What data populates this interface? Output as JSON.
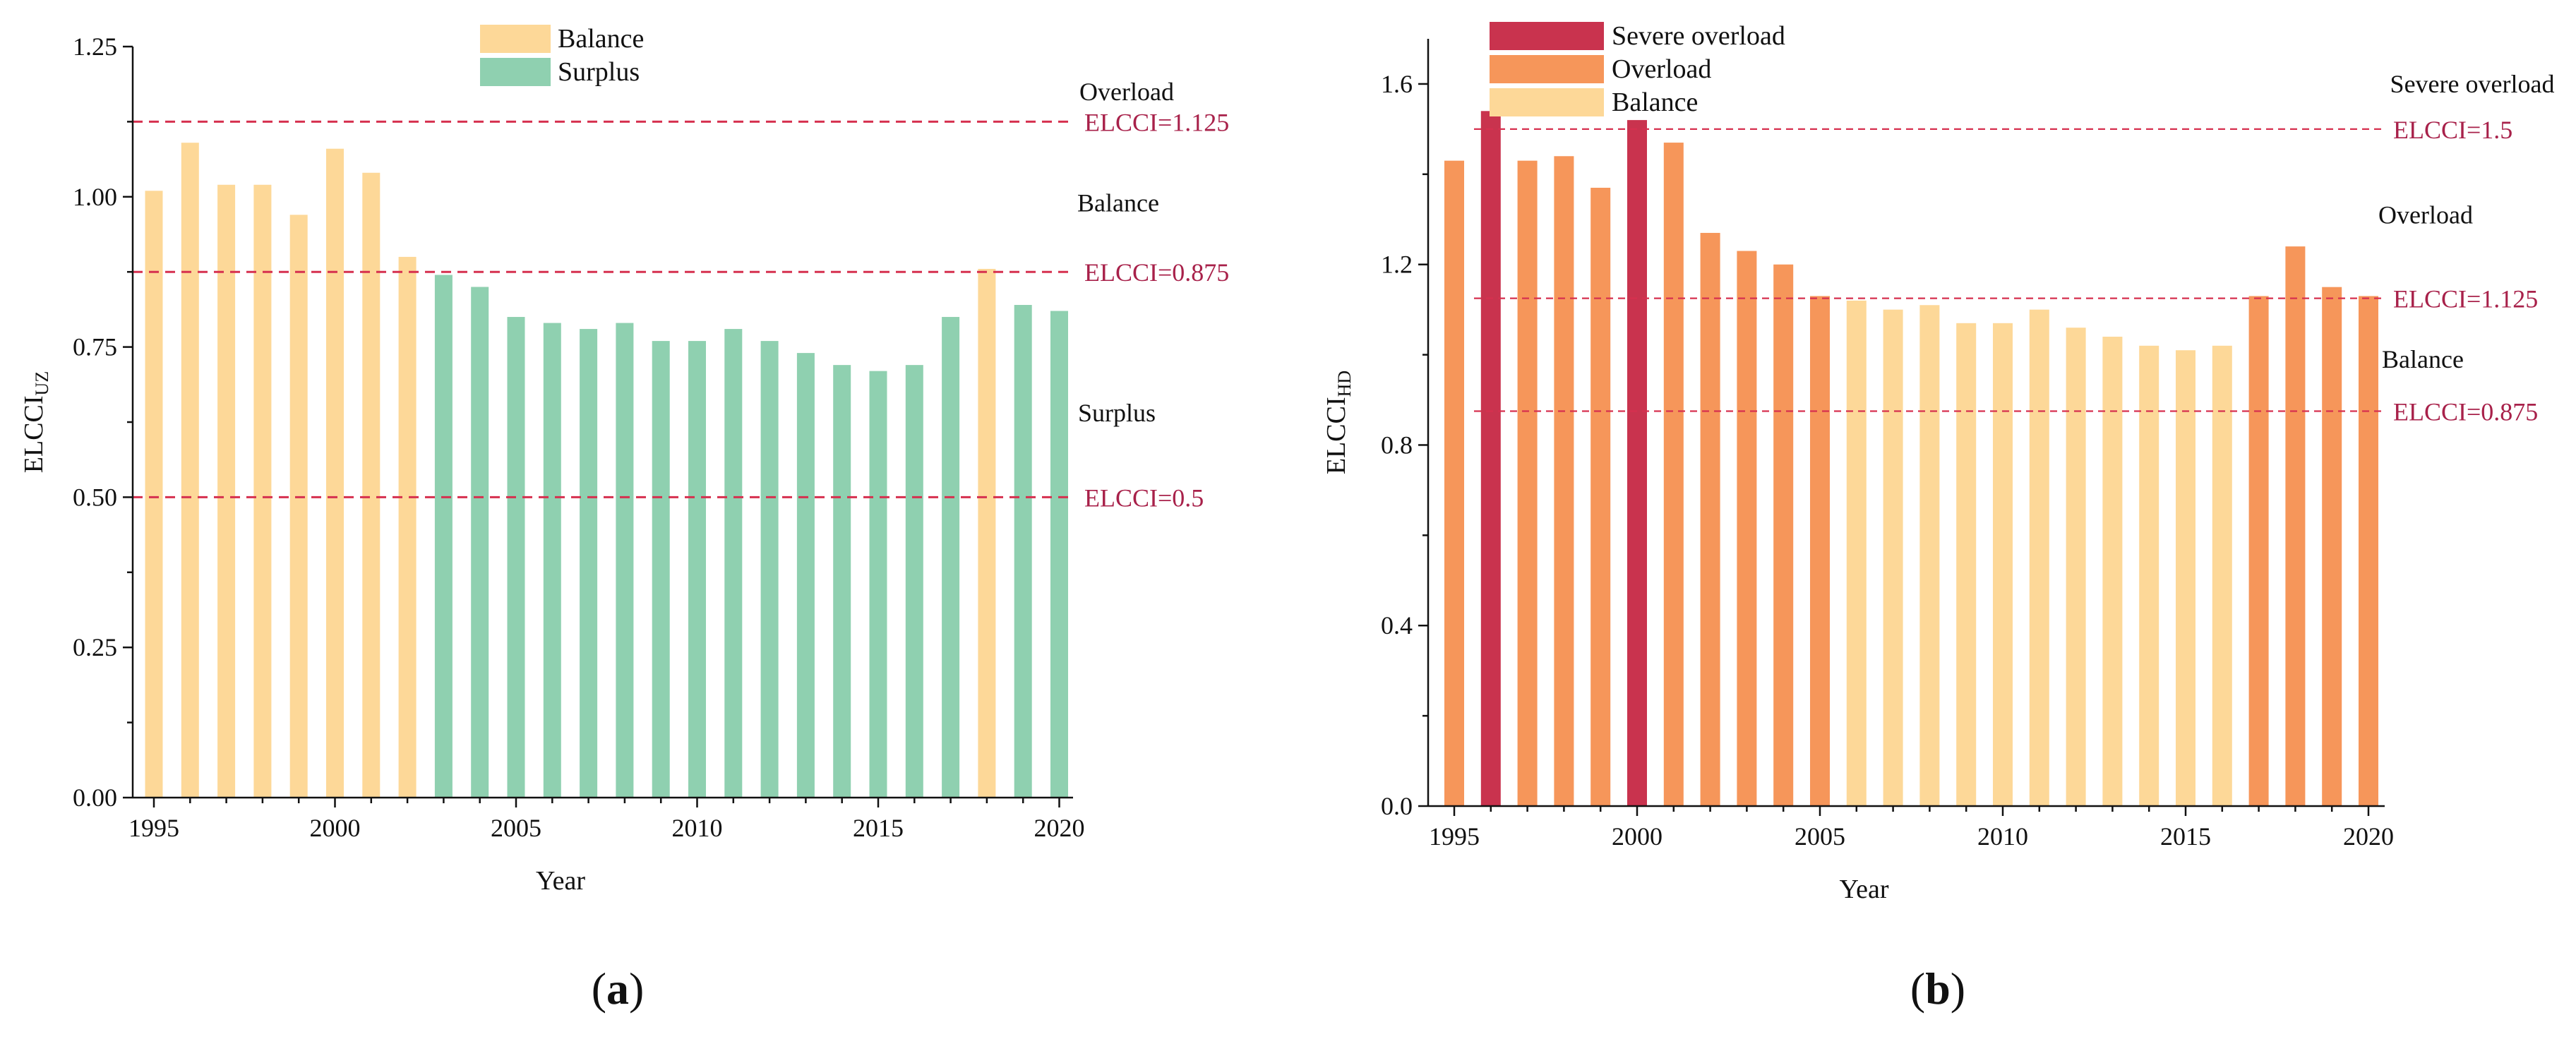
{
  "colors": {
    "severe_overload": "#C9334E",
    "overload": "#F6965A",
    "balance": "#FDD898",
    "surplus": "#8FD0B0",
    "ref_line": "#D6304F",
    "ref_text": "#A8214A"
  },
  "chart_data": [
    {
      "type": "bar",
      "panel_label": "a",
      "xlabel": "Year",
      "ylabel_main": "ELCCI",
      "ylabel_sub": "UZ",
      "ylim": [
        0,
        1.25
      ],
      "yticks": [
        "0.00",
        "0.25",
        "0.50",
        "0.75",
        "1.00",
        "1.25"
      ],
      "xticks": [
        "1995",
        "2000",
        "2005",
        "2010",
        "2015",
        "2020"
      ],
      "legend": [
        {
          "label": "Balance",
          "class": "balance"
        },
        {
          "label": "Surplus",
          "class": "surplus"
        }
      ],
      "ref_lines": [
        {
          "value": 1.125,
          "label": "ELCCI=1.125"
        },
        {
          "value": 0.875,
          "label": "ELCCI=0.875"
        },
        {
          "value": 0.5,
          "label": "ELCCI=0.5"
        }
      ],
      "zone_labels": [
        {
          "label": "Overload",
          "value": 1.175
        },
        {
          "label": "Balance",
          "value": 0.99
        },
        {
          "label": "Surplus",
          "value": 0.64
        }
      ],
      "years": [
        1995,
        1996,
        1997,
        1998,
        1999,
        2000,
        2001,
        2002,
        2003,
        2004,
        2005,
        2006,
        2007,
        2008,
        2009,
        2010,
        2011,
        2012,
        2013,
        2014,
        2015,
        2016,
        2017,
        2018,
        2019,
        2020
      ],
      "values": [
        1.01,
        1.09,
        1.02,
        1.02,
        0.97,
        1.08,
        1.04,
        0.9,
        0.87,
        0.85,
        0.8,
        0.79,
        0.78,
        0.79,
        0.76,
        0.76,
        0.78,
        0.76,
        0.74,
        0.72,
        0.71,
        0.72,
        0.8,
        0.88,
        0.82,
        0.81
      ],
      "classes": [
        "balance",
        "balance",
        "balance",
        "balance",
        "balance",
        "balance",
        "balance",
        "balance",
        "surplus",
        "surplus",
        "surplus",
        "surplus",
        "surplus",
        "surplus",
        "surplus",
        "surplus",
        "surplus",
        "surplus",
        "surplus",
        "surplus",
        "surplus",
        "surplus",
        "surplus",
        "balance",
        "surplus",
        "surplus"
      ]
    },
    {
      "type": "bar",
      "panel_label": "b",
      "xlabel": "Year",
      "ylabel_main": "ELCCI",
      "ylabel_sub": "HD",
      "ylim": [
        0,
        1.7
      ],
      "yticks": [
        "0.0",
        "0.4",
        "0.8",
        "1.2",
        "1.6"
      ],
      "xticks": [
        "1995",
        "2000",
        "2005",
        "2010",
        "2015",
        "2020"
      ],
      "legend": [
        {
          "label": "Severe overload",
          "class": "severe_overload"
        },
        {
          "label": "Overload",
          "class": "overload"
        },
        {
          "label": "Balance",
          "class": "balance"
        }
      ],
      "ref_lines": [
        {
          "value": 1.5,
          "label": "ELCCI=1.5"
        },
        {
          "value": 1.125,
          "label": "ELCCI=1.125"
        },
        {
          "value": 0.875,
          "label": "ELCCI=0.875"
        }
      ],
      "zone_labels": [
        {
          "label": "Severe overload",
          "value": 1.6
        },
        {
          "label": "Overload",
          "value": 1.31
        },
        {
          "label": "Balance",
          "value": 0.99
        }
      ],
      "years": [
        1995,
        1996,
        1997,
        1998,
        1999,
        2000,
        2001,
        2002,
        2003,
        2004,
        2005,
        2006,
        2007,
        2008,
        2009,
        2010,
        2011,
        2012,
        2013,
        2014,
        2015,
        2016,
        2017,
        2018,
        2019,
        2020
      ],
      "values": [
        1.43,
        1.54,
        1.43,
        1.44,
        1.37,
        1.52,
        1.47,
        1.27,
        1.23,
        1.2,
        1.13,
        1.12,
        1.1,
        1.11,
        1.07,
        1.07,
        1.1,
        1.06,
        1.04,
        1.02,
        1.01,
        1.02,
        1.13,
        1.24,
        1.15,
        1.13
      ],
      "classes": [
        "overload",
        "severe_overload",
        "overload",
        "overload",
        "overload",
        "severe_overload",
        "overload",
        "overload",
        "overload",
        "overload",
        "overload",
        "balance",
        "balance",
        "balance",
        "balance",
        "balance",
        "balance",
        "balance",
        "balance",
        "balance",
        "balance",
        "balance",
        "overload",
        "overload",
        "overload",
        "overload"
      ]
    }
  ]
}
